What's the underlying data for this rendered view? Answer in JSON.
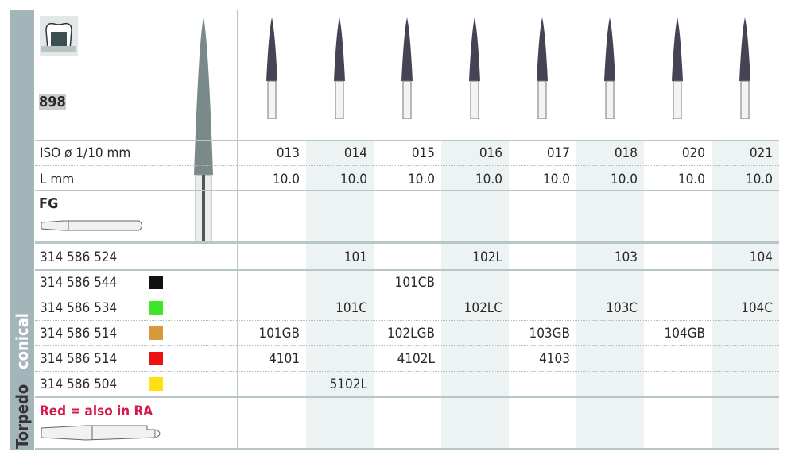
{
  "model": "898",
  "shank_type": "FG",
  "side_labels": {
    "shape": "conical",
    "name": "Torpedo"
  },
  "iso_label": "ISO ø 1/10 mm",
  "length_label": "L mm",
  "iso_sizes": [
    "013",
    "014",
    "015",
    "016",
    "017",
    "018",
    "020",
    "021"
  ],
  "lengths": [
    "10.0",
    "10.0",
    "10.0",
    "10.0",
    "10.0",
    "10.0",
    "10.0",
    "10.0"
  ],
  "rows": [
    {
      "ref": "314 586 524",
      "color": "",
      "cells": [
        "",
        "101",
        "",
        "102L",
        "",
        "103",
        "",
        "104"
      ]
    },
    {
      "ref": "314 586 544",
      "color": "#111111",
      "cells": [
        "",
        "",
        "101CB",
        "",
        "",
        "",
        "",
        ""
      ]
    },
    {
      "ref": "314 586 534",
      "color": "#3ee62a",
      "cells": [
        "",
        "101C",
        "",
        "102LC",
        "",
        "103C",
        "",
        "104C"
      ]
    },
    {
      "ref": "314 586 514",
      "color": "#d69a3a",
      "cells": [
        "101GB",
        "",
        "102LGB",
        "",
        "103GB",
        "",
        "104GB",
        ""
      ]
    },
    {
      "ref": "314 586 514",
      "color": "#ee1111",
      "cells": [
        "4101",
        "",
        "4102L",
        "",
        "4103",
        "",
        "",
        ""
      ]
    },
    {
      "ref": "314 586 504",
      "color": "#ffe010",
      "cells": [
        "",
        "5102L",
        "",
        "",
        "",
        "",
        "",
        ""
      ]
    }
  ],
  "note": "Red = also in RA",
  "colors": {
    "sidebar": "#a3b5b8",
    "note": "#d6194a",
    "shade": "#edf2f2"
  }
}
